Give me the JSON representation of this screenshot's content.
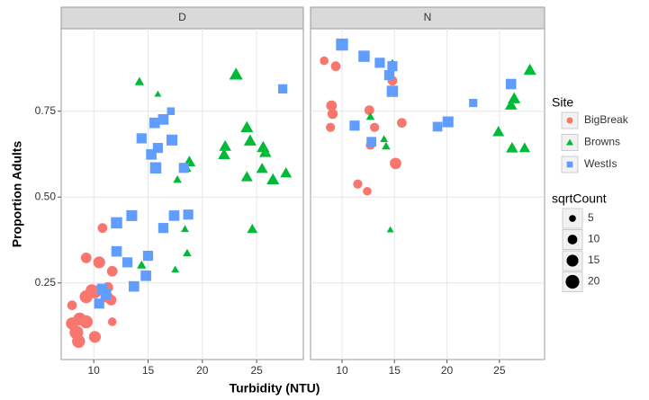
{
  "chart_data": {
    "type": "scatter",
    "xlabel": "Turbidity (NTU)",
    "ylabel": "Proportion Adults",
    "xlim": [
      7,
      29.3
    ],
    "ylim": [
      0.027,
      0.99
    ],
    "xticks": [
      10,
      15,
      20,
      25
    ],
    "yticks": [
      0.25,
      {
        "value": 0.5,
        "label": "0.50"
      },
      0.75
    ],
    "grid": true,
    "legend_title": "Site",
    "size_title": "sqrtCount",
    "size_legend": [
      5,
      10,
      15,
      20
    ],
    "facets": [
      {
        "title": "D",
        "series": [
          {
            "name": "BigBreak",
            "color": "#F8766D",
            "shape": "circle",
            "x": [
              8.4,
              8.7,
              9.3,
              8.0,
              8.6,
              10.1,
              9.3,
              10.1,
              10.5,
              9.3,
              11.7,
              11.3,
              11.2,
              11.6,
              11.7,
              10.8,
              9.8,
              8.0
            ],
            "values": [
              0.106,
              0.145,
              0.137,
              0.132,
              0.08,
              0.093,
              0.21,
              0.224,
              0.31,
              0.323,
              0.284,
              0.237,
              0.21,
              0.2,
              0.137,
              0.41,
              0.229,
              0.185
            ],
            "sizes": [
              20,
              18,
              18,
              16,
              18,
              15,
              18,
              18,
              15,
              12,
              12,
              12,
              15,
              12,
              8,
              10,
              15,
              10
            ]
          },
          {
            "name": "Browns",
            "color": "#00BA38",
            "shape": "triangle",
            "x": [
              14.2,
              15.9,
              18.8,
              18.5,
              17.7,
              18.4,
              18.6,
              17.5,
              14.4,
              23.1,
              24.1,
              24.4,
              22.0,
              22.1,
              25.6,
              25.8,
              25.5,
              27.7,
              26.5,
              24.1,
              24.6
            ],
            "values": [
              0.836,
              0.8,
              0.603,
              0.585,
              0.551,
              0.407,
              0.337,
              0.289,
              0.302,
              0.857,
              0.703,
              0.664,
              0.624,
              0.648,
              0.645,
              0.63,
              0.583,
              0.57,
              0.551,
              0.559,
              0.407
            ],
            "sizes": [
              7,
              4,
              12,
              9,
              6,
              5,
              6,
              5,
              7,
              15,
              13,
              13,
              12,
              12,
              13,
              12,
              11,
              11,
              13,
              11,
              9
            ]
          },
          {
            "name": "WestIs",
            "color": "#619CFF",
            "shape": "square",
            "x": [
              27.4,
              17.1,
              16.4,
              15.6,
              14.4,
              17.2,
              15.9,
              15.3,
              15.7,
              18.3,
              13.5,
              17.4,
              18.7,
              16.4,
              12.1,
              15.0,
              13.1,
              14.8,
              13.7,
              10.8,
              10.5,
              11.1,
              12.1
            ],
            "values": [
              0.815,
              0.75,
              0.726,
              0.716,
              0.671,
              0.666,
              0.643,
              0.624,
              0.585,
              0.585,
              0.446,
              0.446,
              0.449,
              0.41,
              0.425,
              0.329,
              0.31,
              0.271,
              0.24,
              0.232,
              0.19,
              0.216,
              0.342
            ],
            "sizes": [
              10,
              7,
              13,
              13,
              12,
              14,
              12,
              13,
              15,
              12,
              14,
              13,
              12,
              12,
              15,
              12,
              12,
              13,
              13,
              14,
              12,
              13,
              13
            ]
          }
        ]
      },
      {
        "title": "N",
        "series": [
          {
            "name": "BigBreak",
            "color": "#F8766D",
            "shape": "circle",
            "x": [
              8.3,
              9.4,
              9.0,
              9.1,
              8.9,
              12.6,
              13.1,
              12.7,
              14.8,
              15.7,
              15.1,
              11.5,
              12.4
            ],
            "values": [
              0.897,
              0.881,
              0.766,
              0.742,
              0.703,
              0.753,
              0.703,
              0.651,
              0.839,
              0.716,
              0.598,
              0.538,
              0.517
            ],
            "sizes": [
              8,
              10,
              12,
              11,
              9,
              10,
              9,
              9,
              10,
              10,
              14,
              9,
              8
            ]
          },
          {
            "name": "Browns",
            "color": "#00BA38",
            "shape": "triangle",
            "x": [
              14.8,
              27.9,
              26.4,
              26.1,
              24.9,
              26.2,
              27.4,
              12.7,
              14.0,
              14.2,
              14.6
            ],
            "values": [
              0.891,
              0.87,
              0.787,
              0.768,
              0.69,
              0.643,
              0.643,
              0.734,
              0.669,
              0.648,
              0.405
            ],
            "sizes": [
              5,
              13,
              13,
              12,
              11,
              12,
              10,
              6,
              5,
              6,
              4
            ]
          },
          {
            "name": "WestIs",
            "color": "#619CFF",
            "shape": "square",
            "x": [
              10.0,
              12.1,
              13.6,
              14.8,
              14.5,
              14.8,
              26.1,
              22.5,
              20.1,
              19.1,
              11.2,
              12.8
            ],
            "values": [
              0.944,
              0.91,
              0.891,
              0.881,
              0.855,
              0.808,
              0.829,
              0.774,
              0.719,
              0.705,
              0.708,
              0.661
            ],
            "sizes": [
              17,
              15,
              12,
              12,
              12,
              15,
              13,
              8,
              14,
              11,
              12,
              11
            ]
          }
        ]
      }
    ]
  }
}
